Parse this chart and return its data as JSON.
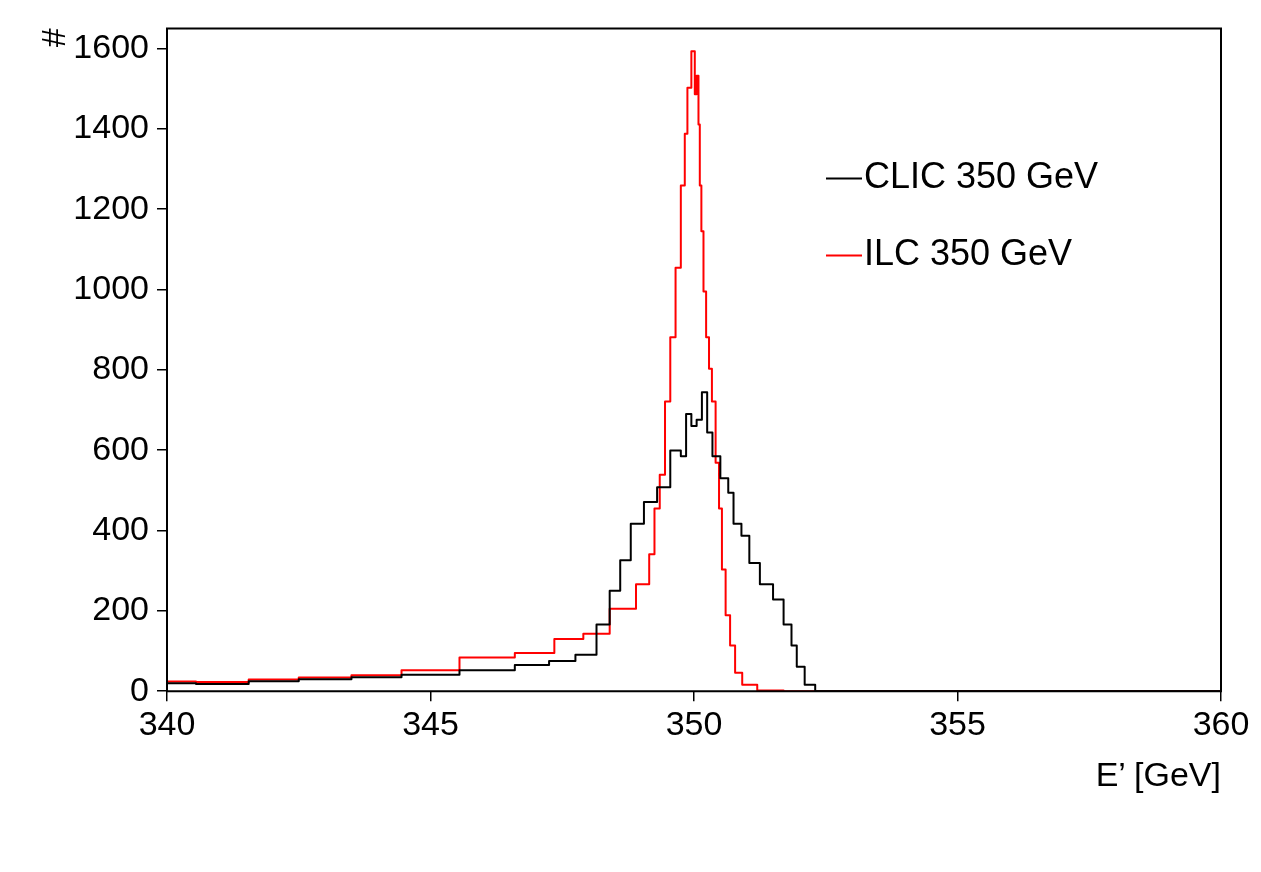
{
  "chart_data": {
    "type": "step",
    "xlabel": "E’ [GeV]",
    "ylabel": "#",
    "xlim": [
      340,
      360
    ],
    "xticks": [
      340,
      345,
      350,
      355,
      360
    ],
    "ylim": [
      0,
      1650
    ],
    "yticks": [
      0,
      200,
      400,
      600,
      800,
      1000,
      1200,
      1400,
      1600
    ],
    "grid": false,
    "legend": "top right",
    "marker": "none",
    "line_style": "solid",
    "series": [
      {
        "name": "CLIC 350 GeV",
        "color": "#000000",
        "x": [
          340,
          341.1,
          342,
          343,
          344,
          344.9,
          346.2,
          347,
          347.5,
          348,
          348.3,
          348.5,
          348.7,
          348.9,
          349.2,
          349.4,
          349.7,
          349.8,
          349.9,
          350,
          350.1,
          350.2,
          350.3,
          350.4,
          350.6,
          350.7,
          350.8,
          351,
          351.1,
          351.4,
          351.6,
          351.8,
          351.9,
          352,
          352.2,
          352.4,
          353,
          355,
          360
        ],
        "values": [
          20,
          18,
          25,
          30,
          35,
          41,
          52,
          65,
          75,
          91,
          166,
          250,
          326,
          417,
          471,
          508,
          599,
          585,
          690,
          660,
          676,
          744,
          644,
          585,
          530,
          494,
          417,
          387,
          319,
          266,
          228,
          166,
          114,
          61,
          16,
          0,
          0,
          0,
          0
        ]
      },
      {
        "name": "ILC 350 GeV",
        "color": "#ff0000",
        "x": [
          340,
          341.1,
          342,
          343,
          344,
          344.9,
          346.2,
          347,
          347.7,
          348.1,
          348.7,
          349.1,
          349.2,
          349.3,
          349.4,
          349.5,
          349.6,
          349.7,
          349.8,
          349.85,
          349.9,
          350,
          350.03,
          350.07,
          350.1,
          350.12,
          350.16,
          350.2,
          350.26,
          350.31,
          350.37,
          350.45,
          350.5,
          350.56,
          350.64,
          350.73,
          350.83,
          351,
          351.4,
          352,
          355,
          360
        ],
        "values": [
          24,
          23,
          29,
          34,
          40,
          52,
          84,
          95,
          130,
          143,
          205,
          266,
          341,
          455,
          539,
          721,
          881,
          1054,
          1259,
          1388,
          1502,
          1593,
          1486,
          1532,
          1411,
          1259,
          1145,
          995,
          881,
          803,
          721,
          569,
          455,
          303,
          189,
          114,
          46,
          16,
          2,
          0,
          0,
          0
        ]
      }
    ]
  }
}
